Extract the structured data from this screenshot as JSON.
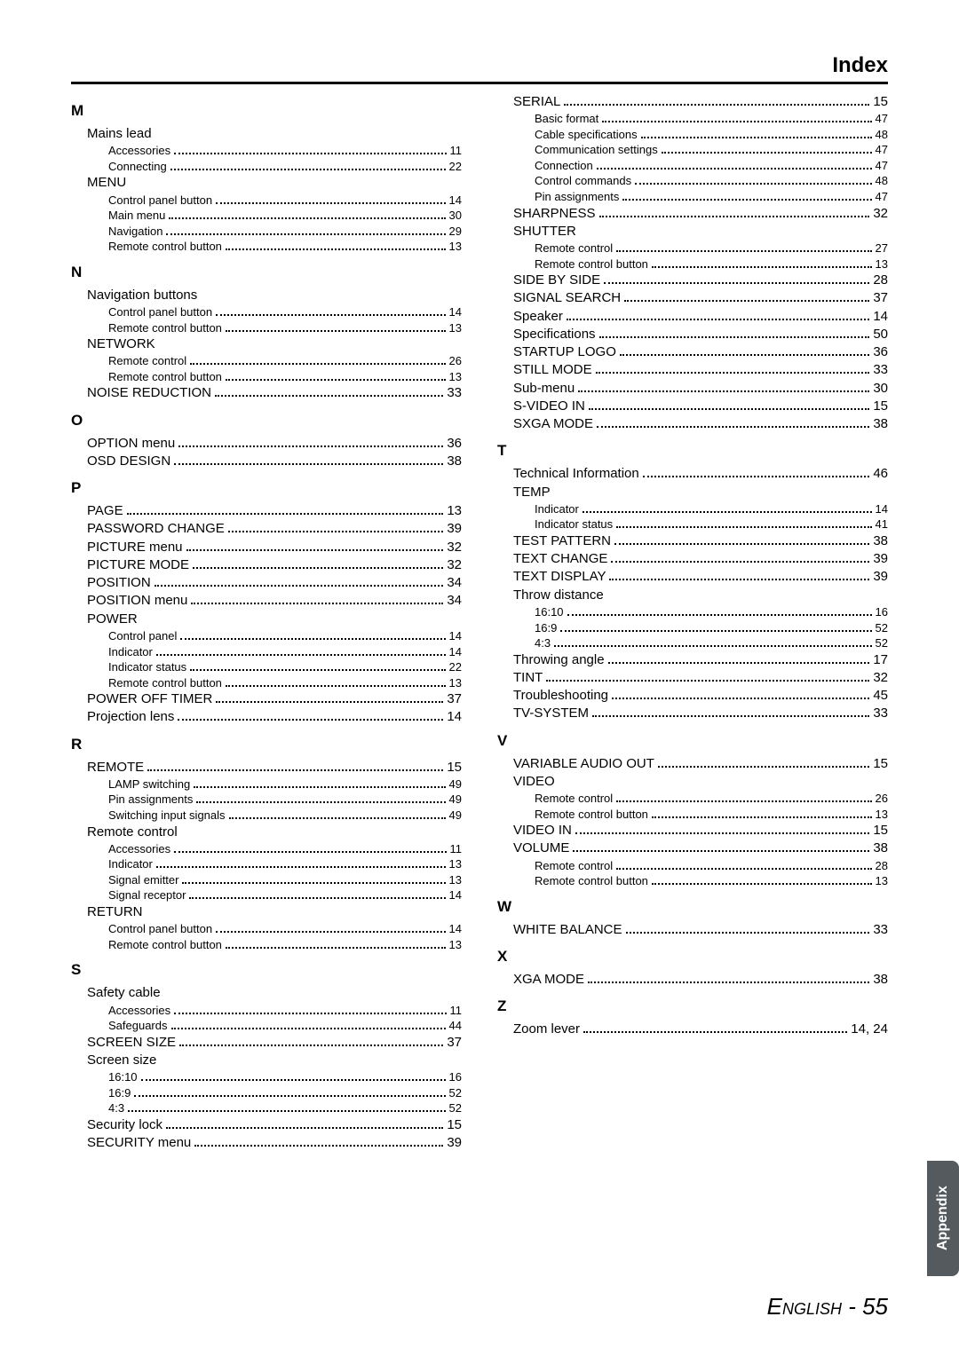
{
  "header_title": "Index",
  "footer_text": "English - 55",
  "tab_text": "Appendix",
  "left": [
    {
      "letter": "M",
      "items": [
        {
          "label": "Mains lead",
          "page": "",
          "sub": 0,
          "nopage": true
        },
        {
          "label": "Accessories",
          "page": "11",
          "sub": 1
        },
        {
          "label": "Connecting",
          "page": "22",
          "sub": 1
        },
        {
          "label": "MENU",
          "page": "",
          "sub": 0,
          "nopage": true
        },
        {
          "label": "Control panel button",
          "page": "14",
          "sub": 1
        },
        {
          "label": "Main menu",
          "page": "30",
          "sub": 1
        },
        {
          "label": "Navigation",
          "page": "29",
          "sub": 1
        },
        {
          "label": "Remote control button",
          "page": "13",
          "sub": 1
        }
      ]
    },
    {
      "letter": "N",
      "items": [
        {
          "label": "Navigation buttons",
          "page": "",
          "sub": 0,
          "nopage": true
        },
        {
          "label": "Control panel button",
          "page": "14",
          "sub": 1
        },
        {
          "label": "Remote control button",
          "page": "13",
          "sub": 1
        },
        {
          "label": "NETWORK",
          "page": "",
          "sub": 0,
          "nopage": true
        },
        {
          "label": "Remote control",
          "page": "26",
          "sub": 1
        },
        {
          "label": "Remote control button",
          "page": "13",
          "sub": 1
        },
        {
          "label": "NOISE REDUCTION",
          "page": "33",
          "sub": 0
        }
      ]
    },
    {
      "letter": "O",
      "items": [
        {
          "label": "OPTION menu",
          "page": "36",
          "sub": 0
        },
        {
          "label": "OSD DESIGN",
          "page": "38",
          "sub": 0
        }
      ]
    },
    {
      "letter": "P",
      "items": [
        {
          "label": "PAGE",
          "page": "13",
          "sub": 0
        },
        {
          "label": "PASSWORD CHANGE",
          "page": "39",
          "sub": 0
        },
        {
          "label": "PICTURE menu",
          "page": "32",
          "sub": 0
        },
        {
          "label": "PICTURE MODE",
          "page": "32",
          "sub": 0
        },
        {
          "label": "POSITION",
          "page": "34",
          "sub": 0
        },
        {
          "label": "POSITION menu",
          "page": "34",
          "sub": 0
        },
        {
          "label": "POWER",
          "page": "",
          "sub": 0,
          "nopage": true
        },
        {
          "label": "Control panel",
          "page": "14",
          "sub": 1
        },
        {
          "label": "Indicator",
          "page": "14",
          "sub": 1
        },
        {
          "label": "Indicator status",
          "page": "22",
          "sub": 1
        },
        {
          "label": "Remote control button",
          "page": "13",
          "sub": 1
        },
        {
          "label": "POWER OFF TIMER",
          "page": "37",
          "sub": 0
        },
        {
          "label": "Projection lens",
          "page": "14",
          "sub": 0
        }
      ]
    },
    {
      "letter": "R",
      "items": [
        {
          "label": "REMOTE",
          "page": "15",
          "sub": 0
        },
        {
          "label": "LAMP switching",
          "page": "49",
          "sub": 1
        },
        {
          "label": "Pin assignments",
          "page": "49",
          "sub": 1
        },
        {
          "label": "Switching input signals",
          "page": "49",
          "sub": 1
        },
        {
          "label": "Remote control",
          "page": "",
          "sub": 0,
          "nopage": true
        },
        {
          "label": "Accessories",
          "page": "11",
          "sub": 1
        },
        {
          "label": "Indicator",
          "page": "13",
          "sub": 1
        },
        {
          "label": "Signal emitter",
          "page": "13",
          "sub": 1
        },
        {
          "label": "Signal receptor",
          "page": "14",
          "sub": 1
        },
        {
          "label": "RETURN",
          "page": "",
          "sub": 0,
          "nopage": true
        },
        {
          "label": "Control panel button",
          "page": "14",
          "sub": 1
        },
        {
          "label": "Remote control button",
          "page": "13",
          "sub": 1
        }
      ]
    },
    {
      "letter": "S",
      "items": [
        {
          "label": "Safety cable",
          "page": "",
          "sub": 0,
          "nopage": true
        },
        {
          "label": "Accessories",
          "page": "11",
          "sub": 1
        },
        {
          "label": "Safeguards",
          "page": "44",
          "sub": 1
        },
        {
          "label": "SCREEN SIZE",
          "page": "37",
          "sub": 0
        },
        {
          "label": "Screen size",
          "page": "",
          "sub": 0,
          "nopage": true
        },
        {
          "label": "16:10",
          "page": "16",
          "sub": 1
        },
        {
          "label": "16:9",
          "page": "52",
          "sub": 1
        },
        {
          "label": "4:3",
          "page": "52",
          "sub": 1
        },
        {
          "label": "Security lock",
          "page": "15",
          "sub": 0
        },
        {
          "label": "SECURITY menu",
          "page": "39",
          "sub": 0
        }
      ]
    }
  ],
  "right": [
    {
      "letter": "",
      "items": [
        {
          "label": "SERIAL",
          "page": "15",
          "sub": 0
        },
        {
          "label": "Basic format",
          "page": "47",
          "sub": 1
        },
        {
          "label": "Cable specifications",
          "page": "48",
          "sub": 1
        },
        {
          "label": "Communication settings",
          "page": "47",
          "sub": 1
        },
        {
          "label": "Connection",
          "page": "47",
          "sub": 1
        },
        {
          "label": "Control commands",
          "page": "48",
          "sub": 1
        },
        {
          "label": "Pin assignments",
          "page": "47",
          "sub": 1
        },
        {
          "label": "SHARPNESS",
          "page": "32",
          "sub": 0
        },
        {
          "label": "SHUTTER",
          "page": "",
          "sub": 0,
          "nopage": true
        },
        {
          "label": "Remote control",
          "page": "27",
          "sub": 1
        },
        {
          "label": "Remote control button",
          "page": "13",
          "sub": 1
        },
        {
          "label": "SIDE BY SIDE",
          "page": "28",
          "sub": 0
        },
        {
          "label": "SIGNAL SEARCH",
          "page": "37",
          "sub": 0
        },
        {
          "label": "Speaker",
          "page": "14",
          "sub": 0
        },
        {
          "label": "Specifications",
          "page": "50",
          "sub": 0
        },
        {
          "label": "STARTUP LOGO",
          "page": "36",
          "sub": 0
        },
        {
          "label": "STILL MODE",
          "page": "33",
          "sub": 0
        },
        {
          "label": "Sub-menu",
          "page": "30",
          "sub": 0
        },
        {
          "label": "S-VIDEO IN",
          "page": "15",
          "sub": 0
        },
        {
          "label": "SXGA MODE",
          "page": "38",
          "sub": 0
        }
      ]
    },
    {
      "letter": "T",
      "items": [
        {
          "label": "Technical Information",
          "page": "46",
          "sub": 0
        },
        {
          "label": "TEMP",
          "page": "",
          "sub": 0,
          "nopage": true
        },
        {
          "label": "Indicator",
          "page": "14",
          "sub": 1
        },
        {
          "label": "Indicator status",
          "page": "41",
          "sub": 1
        },
        {
          "label": "TEST PATTERN",
          "page": "38",
          "sub": 0
        },
        {
          "label": "TEXT CHANGE",
          "page": "39",
          "sub": 0
        },
        {
          "label": "TEXT DISPLAY",
          "page": "39",
          "sub": 0
        },
        {
          "label": "Throw distance",
          "page": "",
          "sub": 0,
          "nopage": true
        },
        {
          "label": "16:10",
          "page": "16",
          "sub": 1
        },
        {
          "label": "16:9",
          "page": "52",
          "sub": 1
        },
        {
          "label": "4:3",
          "page": "52",
          "sub": 1
        },
        {
          "label": "Throwing angle",
          "page": "17",
          "sub": 0
        },
        {
          "label": "TINT",
          "page": "32",
          "sub": 0
        },
        {
          "label": "Troubleshooting",
          "page": "45",
          "sub": 0
        },
        {
          "label": "TV-SYSTEM",
          "page": "33",
          "sub": 0
        }
      ]
    },
    {
      "letter": "V",
      "items": [
        {
          "label": "VARIABLE AUDIO OUT",
          "page": "15",
          "sub": 0
        },
        {
          "label": "VIDEO",
          "page": "",
          "sub": 0,
          "nopage": true
        },
        {
          "label": "Remote control",
          "page": "26",
          "sub": 1
        },
        {
          "label": "Remote control button",
          "page": "13",
          "sub": 1
        },
        {
          "label": "VIDEO IN",
          "page": "15",
          "sub": 0
        },
        {
          "label": "VOLUME",
          "page": "38",
          "sub": 0
        },
        {
          "label": "Remote control",
          "page": "28",
          "sub": 1
        },
        {
          "label": "Remote control button",
          "page": "13",
          "sub": 1
        }
      ]
    },
    {
      "letter": "W",
      "items": [
        {
          "label": "WHITE BALANCE",
          "page": "33",
          "sub": 0
        }
      ]
    },
    {
      "letter": "X",
      "items": [
        {
          "label": "XGA MODE",
          "page": "38",
          "sub": 0
        }
      ]
    },
    {
      "letter": "Z",
      "items": [
        {
          "label": "Zoom lever",
          "page": "14, 24",
          "sub": 0
        }
      ]
    }
  ]
}
